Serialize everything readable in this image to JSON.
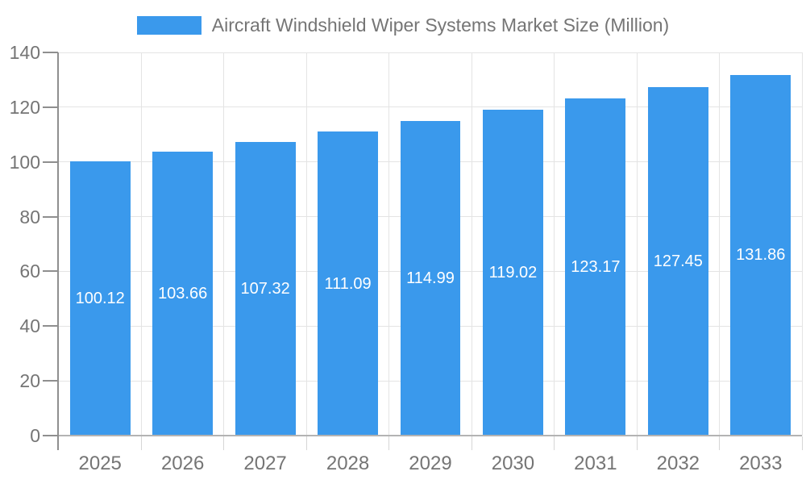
{
  "chart_data": {
    "type": "bar",
    "title": "Aircraft Windshield Wiper Systems Market Size (Million)",
    "categories": [
      "2025",
      "2026",
      "2027",
      "2028",
      "2029",
      "2030",
      "2031",
      "2032",
      "2033"
    ],
    "values": [
      100.12,
      103.66,
      107.32,
      111.09,
      114.99,
      119.02,
      123.17,
      127.45,
      131.86
    ],
    "value_labels": [
      "100.12",
      "103.66",
      "107.32",
      "111.09",
      "114.99",
      "119.02",
      "123.17",
      "127.45",
      "131.86"
    ],
    "xlabel": "",
    "ylabel": "",
    "ylim": [
      0,
      140
    ],
    "yticks": [
      0,
      20,
      40,
      60,
      80,
      100,
      120,
      140
    ],
    "grid": true,
    "legend_position": "top",
    "colors": {
      "bar": "#3a99ec",
      "bar_value_text": "#ffffff",
      "axis_text": "#757575",
      "gridline": "#e4e4e4",
      "y_axis_line": "#8f8f8f",
      "x_axis_line": "#b3b3b3",
      "background": "#ffffff"
    }
  }
}
